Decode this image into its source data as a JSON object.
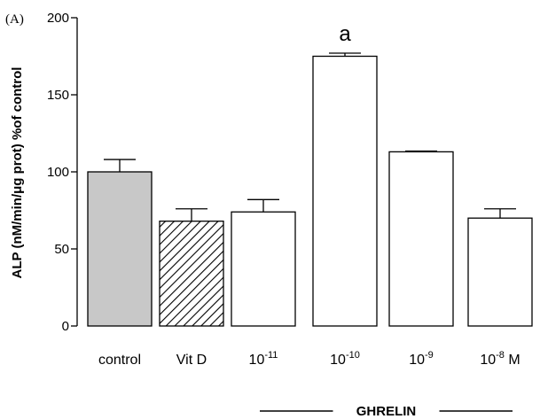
{
  "panel_label": "(A)",
  "chart_data": {
    "type": "bar",
    "ylabel": "ALP (nM/min/μg prot) %of control",
    "ylim": [
      0,
      200
    ],
    "yticks": [
      0,
      50,
      100,
      150,
      200
    ],
    "categories": [
      {
        "base": "control",
        "sup": ""
      },
      {
        "base": "Vit D",
        "sup": ""
      },
      {
        "base": "10",
        "sup": "-11"
      },
      {
        "base": "10",
        "sup": "-10"
      },
      {
        "base": "10",
        "sup": "-9"
      },
      {
        "base": "10",
        "sup": "-8",
        "suffix": " M"
      }
    ],
    "values": [
      100,
      68,
      74,
      175,
      113,
      70
    ],
    "errors": [
      8,
      8,
      8,
      2,
      0.5,
      6
    ],
    "fills": [
      "gray",
      "hatched",
      "white",
      "white",
      "white",
      "white"
    ],
    "annotations": [
      {
        "category_index": 3,
        "text": "a"
      }
    ],
    "group_label": {
      "text": "GHRELIN",
      "from_index": 2,
      "to_index": 5
    }
  },
  "colors": {
    "gray_fill": "#c8c8c8",
    "white_fill": "#ffffff",
    "stroke": "#000000"
  }
}
